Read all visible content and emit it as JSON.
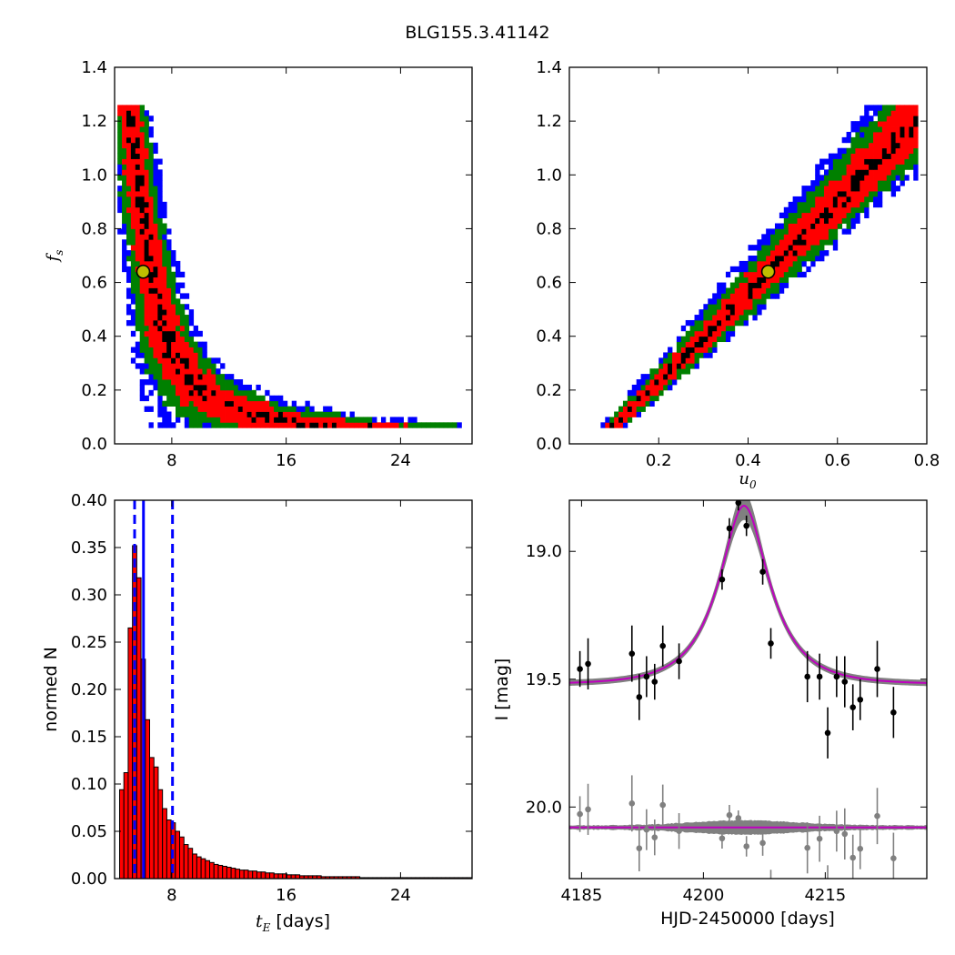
{
  "title": "BLG155.3.41142",
  "chart_data": [
    {
      "type": "heatmap",
      "panel": "fs-vs-tE",
      "xlabel": "",
      "ylabel": "f_s",
      "ylabel_main": "f",
      "ylabel_sub": "s",
      "xlim": [
        4,
        29
      ],
      "ylim": [
        0,
        1.4
      ],
      "xticks": [
        8,
        16,
        24
      ],
      "yticks": [
        0.0,
        0.2,
        0.4,
        0.6,
        0.8,
        1.0,
        1.2,
        1.4
      ],
      "ytick_labels": [
        "0.0",
        "0.2",
        "0.4",
        "0.6",
        "0.8",
        "1.0",
        "1.2",
        "1.4"
      ],
      "levels": [
        {
          "name": "3-sigma",
          "color": "#0000ff"
        },
        {
          "name": "2-sigma",
          "color": "#008000"
        },
        {
          "name": "1-sigma",
          "color": "#ff0000"
        },
        {
          "name": "high density",
          "color": "#000000"
        }
      ],
      "best_fit": {
        "x": 6.0,
        "y": 0.64
      },
      "marker_color": "#bfbf00"
    },
    {
      "type": "heatmap",
      "panel": "fs-vs-u0",
      "xlabel": "u_0",
      "xlabel_main": "u",
      "xlabel_sub": "0",
      "ylabel": "",
      "xlim": [
        0.0,
        0.8
      ],
      "ylim": [
        0,
        1.4
      ],
      "xticks": [
        0.2,
        0.4,
        0.6,
        0.8
      ],
      "xtick_labels": [
        "0.2",
        "0.4",
        "0.6",
        "0.8"
      ],
      "yticks": [
        0.0,
        0.2,
        0.4,
        0.6,
        0.8,
        1.0,
        1.2,
        1.4
      ],
      "ytick_labels": [
        "0.0",
        "0.2",
        "0.4",
        "0.6",
        "0.8",
        "1.0",
        "1.2",
        "1.4"
      ],
      "levels": [
        {
          "name": "3-sigma",
          "color": "#0000ff"
        },
        {
          "name": "2-sigma",
          "color": "#008000"
        },
        {
          "name": "1-sigma",
          "color": "#ff0000"
        },
        {
          "name": "high density",
          "color": "#000000"
        }
      ],
      "best_fit": {
        "x": 0.445,
        "y": 0.64
      },
      "marker_color": "#bfbf00"
    },
    {
      "type": "bar",
      "panel": "tE-histogram",
      "xlabel": "t_E [days]",
      "xlabel_main": "t",
      "xlabel_sub": "E",
      "xlabel_units": " [days]",
      "ylabel": "normed N",
      "xlim": [
        4,
        29
      ],
      "ylim": [
        0,
        0.4
      ],
      "xticks": [
        8,
        16,
        24
      ],
      "yticks": [
        0.0,
        0.05,
        0.1,
        0.15,
        0.2,
        0.25,
        0.3,
        0.35,
        0.4
      ],
      "ytick_labels": [
        "0.00",
        "0.05",
        "0.10",
        "0.15",
        "0.20",
        "0.25",
        "0.30",
        "0.35",
        "0.40"
      ],
      "bin_start": 4.35,
      "bin_width": 0.3,
      "values": [
        0.094,
        0.112,
        0.265,
        0.352,
        0.318,
        0.232,
        0.168,
        0.128,
        0.118,
        0.094,
        0.074,
        0.062,
        0.059,
        0.05,
        0.044,
        0.036,
        0.032,
        0.026,
        0.023,
        0.021,
        0.019,
        0.017,
        0.015,
        0.014,
        0.013,
        0.012,
        0.011,
        0.01,
        0.009,
        0.009,
        0.008,
        0.008,
        0.007,
        0.007,
        0.006,
        0.006,
        0.005,
        0.005,
        0.005,
        0.004,
        0.004,
        0.004,
        0.003,
        0.003,
        0.003,
        0.003,
        0.003,
        0.002,
        0.002,
        0.002,
        0.002,
        0.002,
        0.002,
        0.002,
        0.002,
        0.002,
        0.001,
        0.001,
        0.001,
        0.001,
        0.001,
        0.001,
        0.001,
        0.001,
        0.001,
        0.001,
        0.001,
        0.001,
        0.001,
        0.001,
        0.001,
        0.001,
        0.001,
        0.001,
        0.001,
        0.001,
        0.001,
        0.001,
        0.001,
        0.001,
        0.001,
        0.001
      ],
      "bar_color": "#ff0000",
      "median_line": 6.02,
      "confidence_lines": [
        5.4,
        8.05
      ],
      "line_color": "#0000ff"
    },
    {
      "type": "scatter",
      "panel": "light-curve",
      "xlabel": "HJD-2450000 [days]",
      "ylabel": "I [mag]",
      "xlim": [
        4183.5,
        4227.5
      ],
      "ylim": [
        20.28,
        18.8
      ],
      "xticks": [
        4185,
        4200,
        4215
      ],
      "yticks": [
        19.0,
        19.5,
        20.0
      ],
      "ytick_labels": [
        "19.0",
        "19.5",
        "20.0"
      ],
      "model": {
        "t0": 4205.0,
        "tE": 6.0,
        "u0": 0.445,
        "fs": 0.64,
        "baseline": 19.52
      },
      "model_color": "#bf00bf",
      "band_color": "#808080",
      "data_points": [
        {
          "t": 4184.8,
          "mag": 19.46,
          "err": 0.07
        },
        {
          "t": 4185.8,
          "mag": 19.44,
          "err": 0.1
        },
        {
          "t": 4191.2,
          "mag": 19.4,
          "err": 0.11
        },
        {
          "t": 4192.1,
          "mag": 19.57,
          "err": 0.09
        },
        {
          "t": 4193.0,
          "mag": 19.49,
          "err": 0.08
        },
        {
          "t": 4194.0,
          "mag": 19.51,
          "err": 0.07
        },
        {
          "t": 4195.0,
          "mag": 19.37,
          "err": 0.08
        },
        {
          "t": 4197.0,
          "mag": 19.43,
          "err": 0.07
        },
        {
          "t": 4202.3,
          "mag": 19.11,
          "err": 0.04
        },
        {
          "t": 4203.2,
          "mag": 18.91,
          "err": 0.04
        },
        {
          "t": 4204.3,
          "mag": 18.81,
          "err": 0.03
        },
        {
          "t": 4205.3,
          "mag": 18.9,
          "err": 0.04
        },
        {
          "t": 4207.3,
          "mag": 19.08,
          "err": 0.05
        },
        {
          "t": 4208.3,
          "mag": 19.36,
          "err": 0.06
        },
        {
          "t": 4212.8,
          "mag": 19.49,
          "err": 0.1
        },
        {
          "t": 4214.3,
          "mag": 19.49,
          "err": 0.09
        },
        {
          "t": 4215.3,
          "mag": 19.71,
          "err": 0.1
        },
        {
          "t": 4216.4,
          "mag": 19.49,
          "err": 0.08
        },
        {
          "t": 4217.4,
          "mag": 19.51,
          "err": 0.1
        },
        {
          "t": 4218.4,
          "mag": 19.61,
          "err": 0.09
        },
        {
          "t": 4219.3,
          "mag": 19.58,
          "err": 0.08
        },
        {
          "t": 4221.4,
          "mag": 19.46,
          "err": 0.11
        },
        {
          "t": 4223.4,
          "mag": 19.63,
          "err": 0.1
        }
      ],
      "residual_offset": 20.08,
      "residual_color": "#808080"
    }
  ]
}
